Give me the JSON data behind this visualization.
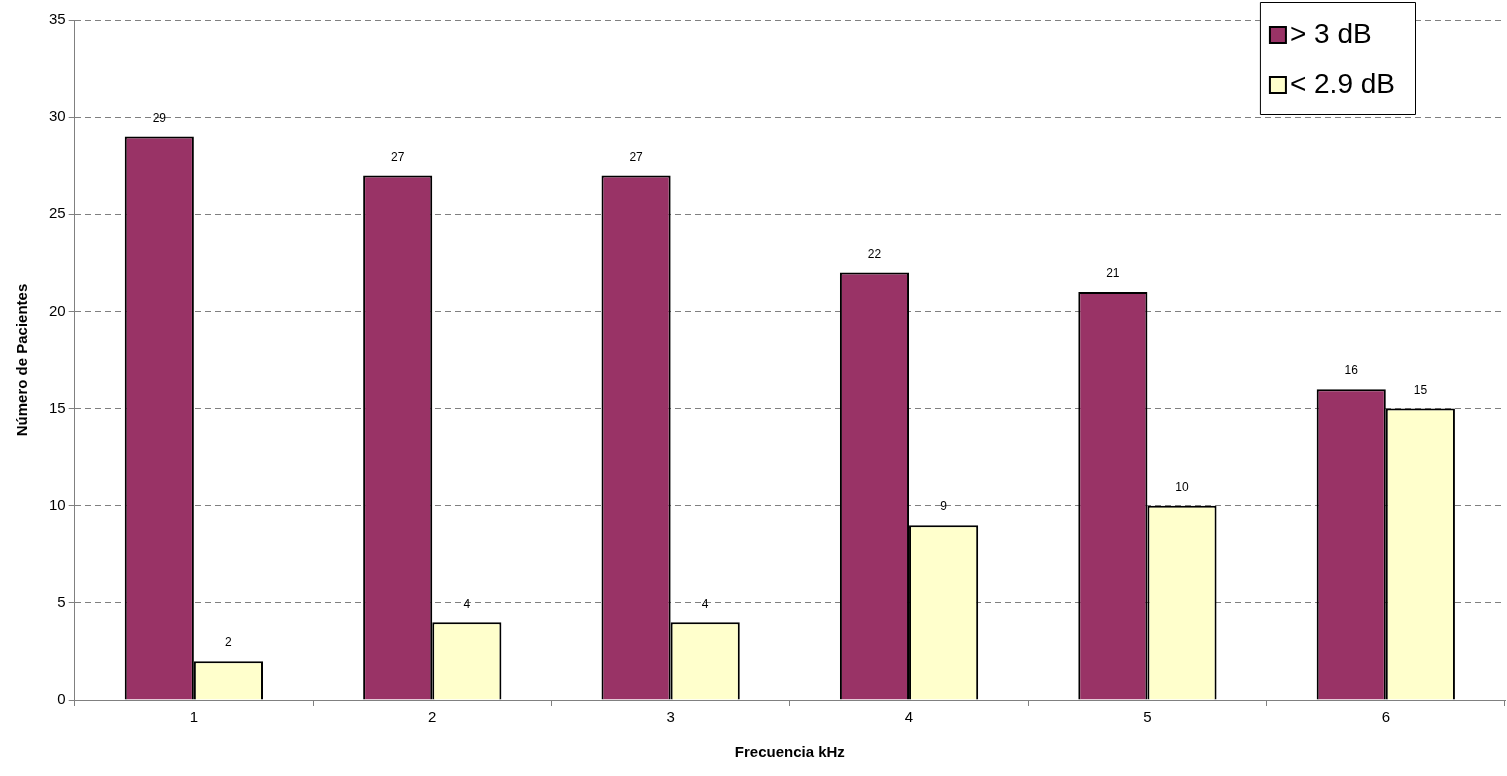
{
  "chart_data": {
    "type": "bar",
    "xlabel": "Frecuencia kHz",
    "ylabel": "Número de Pacientes",
    "categories": [
      "1",
      "2",
      "3",
      "4",
      "5",
      "6"
    ],
    "series": [
      {
        "name": "> 3 dB",
        "color": "#993366",
        "values": [
          29,
          27,
          27,
          22,
          21,
          16
        ]
      },
      {
        "name": "< 2.9 dB",
        "color": "#ffffcc",
        "values": [
          2,
          4,
          4,
          9,
          10,
          15
        ]
      }
    ],
    "ylim": [
      0,
      35
    ],
    "yticks": [
      0,
      5,
      10,
      15,
      20,
      25,
      30,
      35
    ],
    "grid": "y",
    "legend": "top right",
    "data_labels": true
  }
}
